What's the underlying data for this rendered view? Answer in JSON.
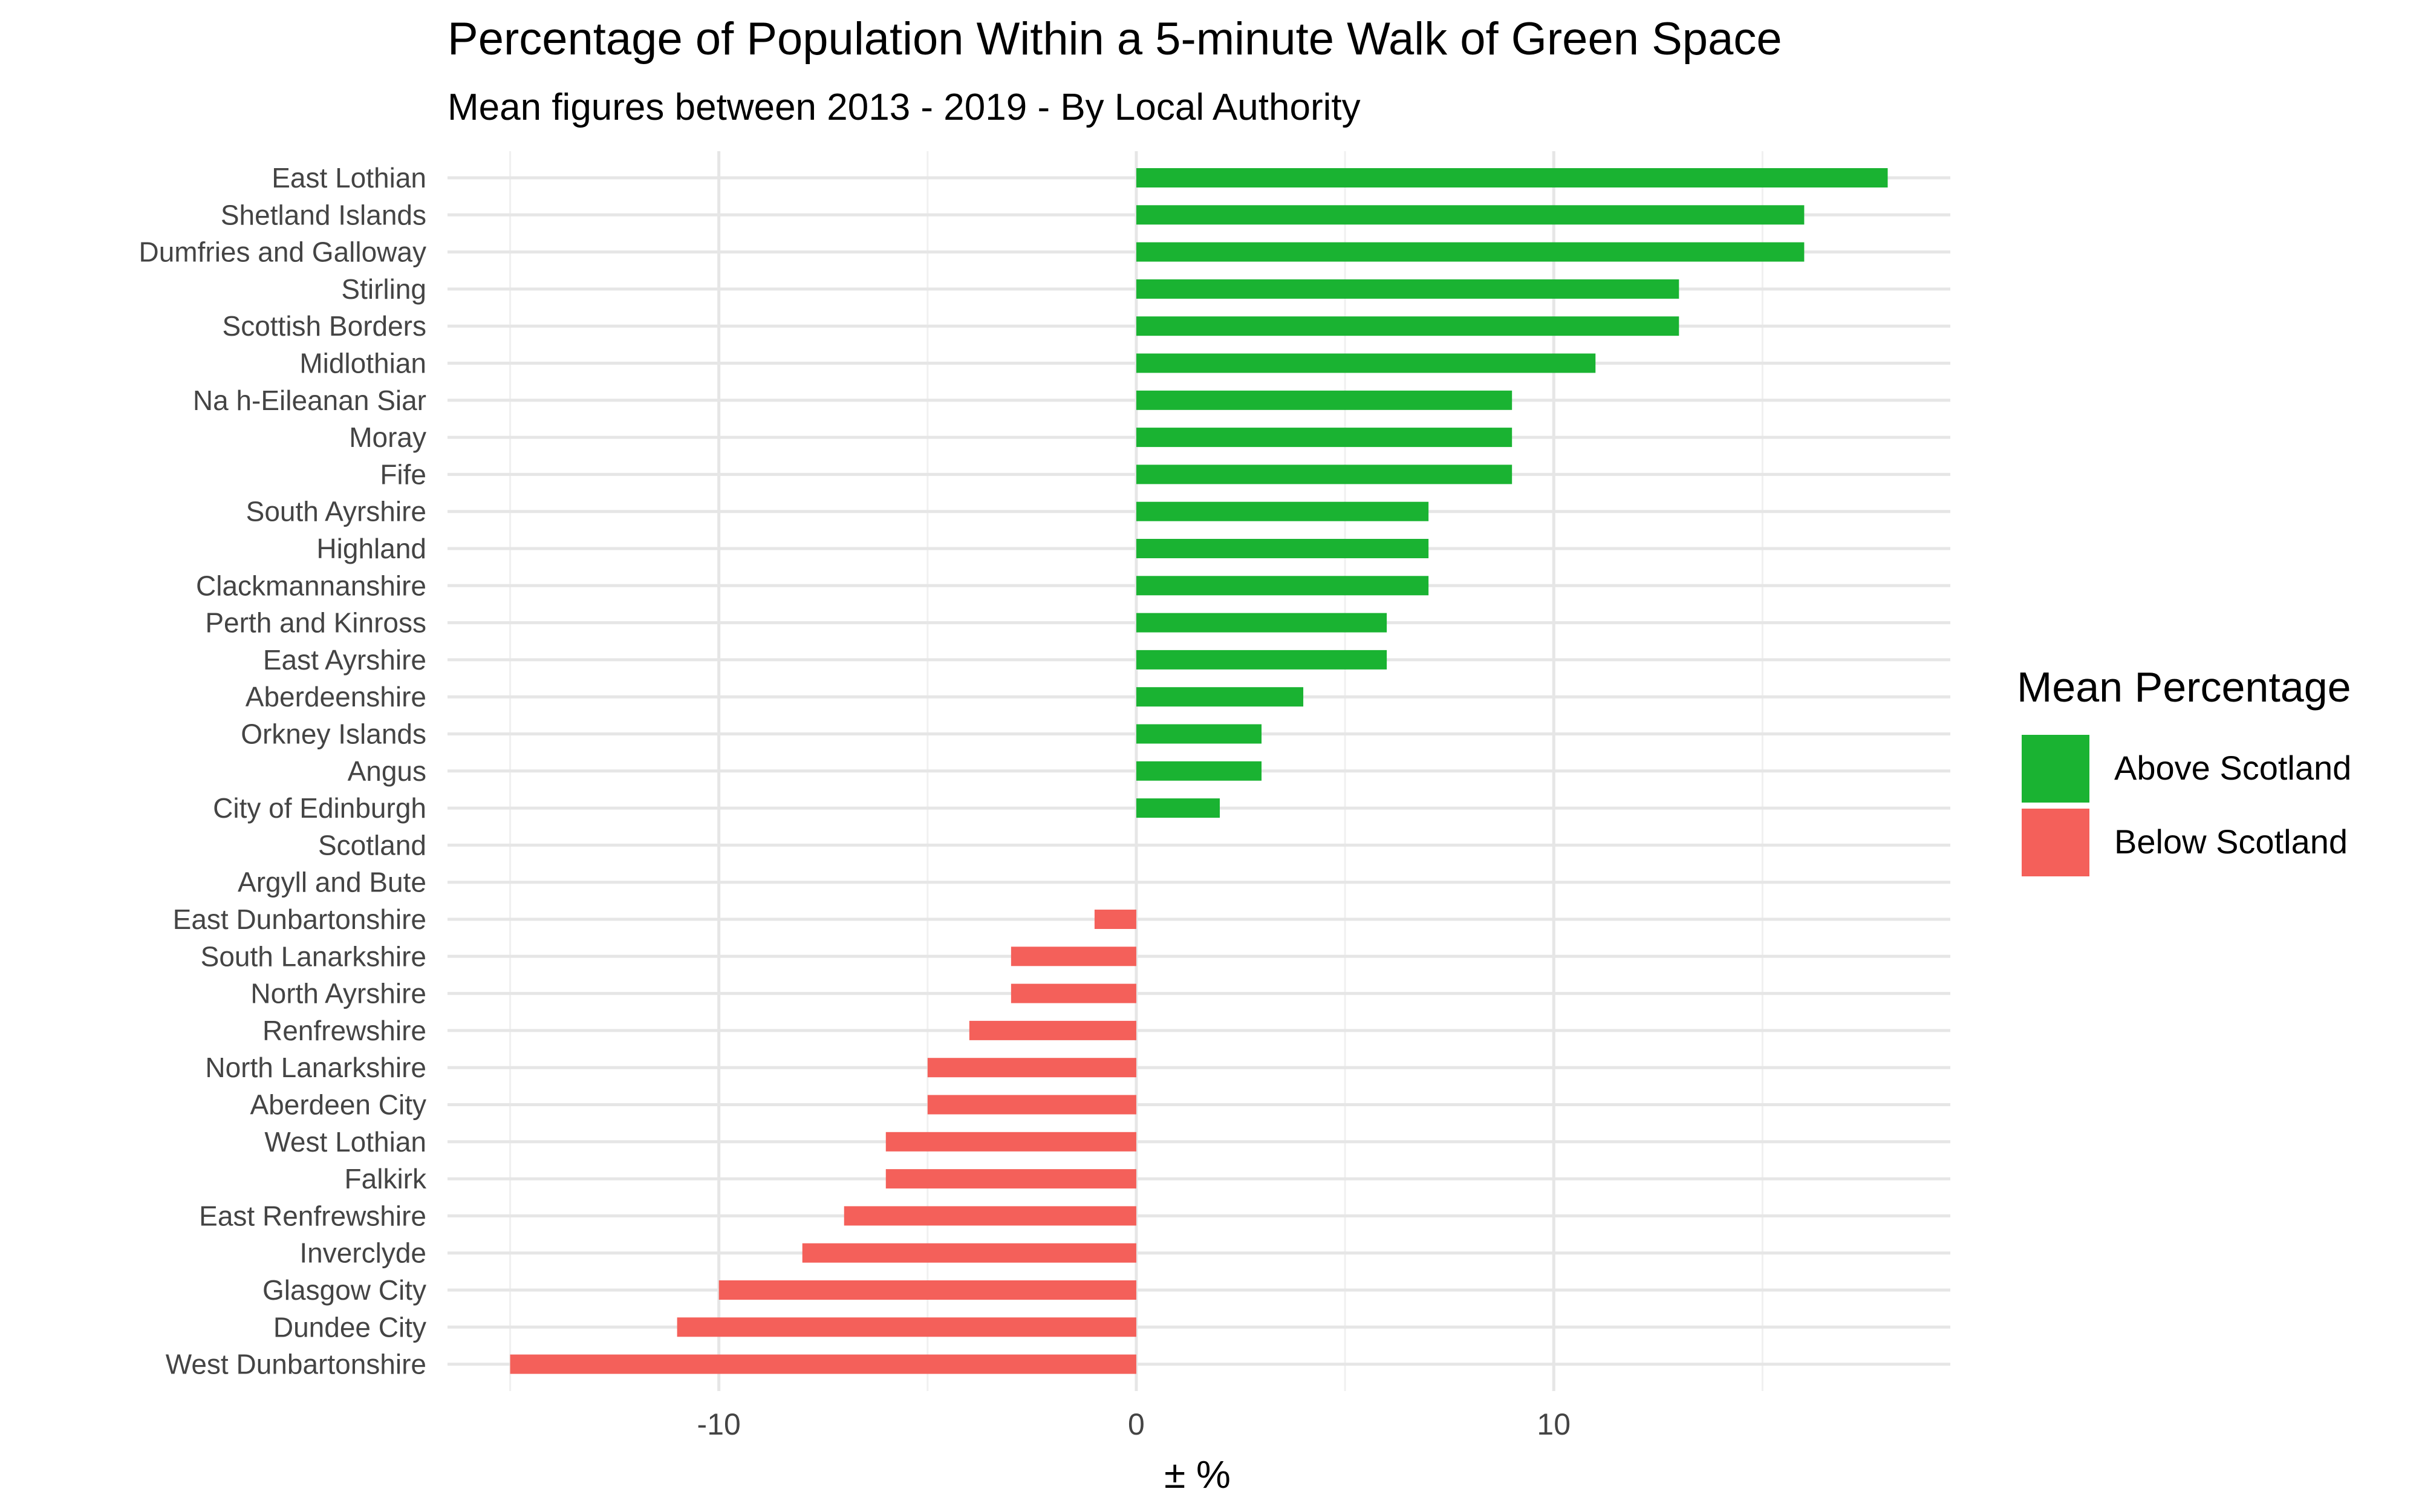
{
  "chart_data": {
    "type": "bar",
    "orientation": "horizontal",
    "title": "Percentage of Population Within a 5-minute Walk of Green Space",
    "subtitle": "Mean figures between 2013 - 2019 - By Local Authority",
    "xlabel": "± %",
    "ylabel": "",
    "xlim": [
      -16.5,
      19.5
    ],
    "xticks": [
      -10,
      0,
      10
    ],
    "xtick_labels": [
      "-10",
      "0",
      "10"
    ],
    "grid": true,
    "legend": {
      "title": "Mean Percentage",
      "placement": "right",
      "entries": [
        {
          "label": "Above Scotland",
          "color": "#1AB332"
        },
        {
          "label": "Below Scotland",
          "color": "#F4605A"
        }
      ]
    },
    "categories": [
      "East Lothian",
      "Shetland Islands",
      "Dumfries and Galloway",
      "Stirling",
      "Scottish Borders",
      "Midlothian",
      "Na h-Eileanan Siar",
      "Moray",
      "Fife",
      "South Ayrshire",
      "Highland",
      "Clackmannanshire",
      "Perth and Kinross",
      "East Ayrshire",
      "Aberdeenshire",
      "Orkney Islands",
      "Angus",
      "City of Edinburgh",
      "Scotland",
      "Argyll and Bute",
      "East Dunbartonshire",
      "South Lanarkshire",
      "North Ayrshire",
      "Renfrewshire",
      "North Lanarkshire",
      "Aberdeen City",
      "West Lothian",
      "Falkirk",
      "East Renfrewshire",
      "Inverclyde",
      "Glasgow City",
      "Dundee City",
      "West Dunbartonshire"
    ],
    "values": [
      18,
      16,
      16,
      13,
      13,
      11,
      9,
      9,
      9,
      7,
      7,
      7,
      6,
      6,
      4,
      3,
      3,
      2,
      0,
      0,
      -1,
      -3,
      -3,
      -4,
      -5,
      -5,
      -6,
      -6,
      -7,
      -8,
      -10,
      -11,
      -15
    ]
  }
}
